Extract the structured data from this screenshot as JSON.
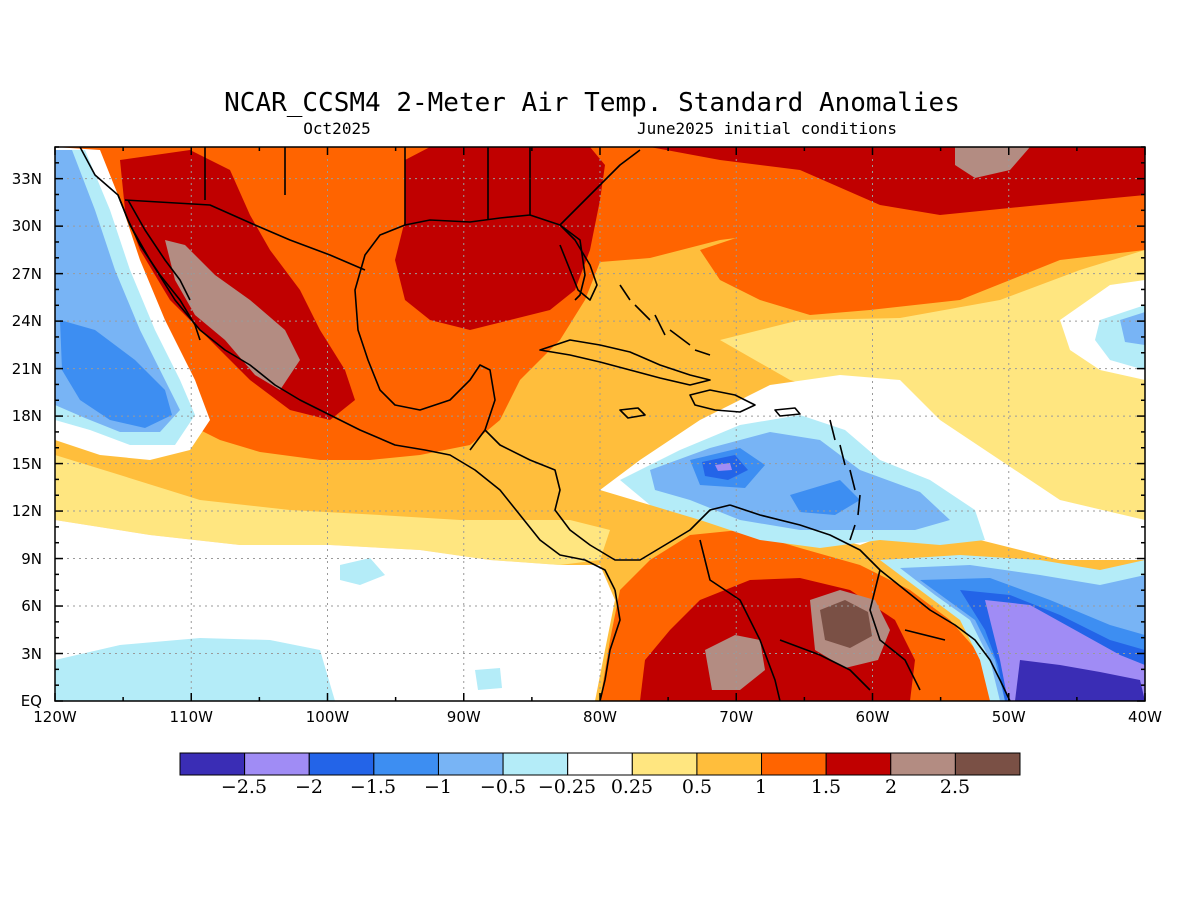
{
  "title": "NCAR_CCSM4 2-Meter Air Temp. Standard Anomalies",
  "valid_month": "Oct2025",
  "initial_conditions": "June2025 initial conditions",
  "axes": {
    "x_ticks": [
      "120W",
      "110W",
      "100W",
      "90W",
      "80W",
      "70W",
      "60W",
      "50W",
      "40W"
    ],
    "y_ticks": [
      "EQ",
      "3N",
      "6N",
      "9N",
      "12N",
      "15N",
      "18N",
      "21N",
      "24N",
      "27N",
      "30N",
      "33N"
    ],
    "lon_range": [
      -120,
      -40
    ],
    "lat_range": [
      0,
      35
    ],
    "grid": true
  },
  "colorbar": {
    "colors": [
      "#3a2db5",
      "#a08cf5",
      "#2364e8",
      "#3d8ef2",
      "#78b4f5",
      "#b4ecf8",
      "#ffffff",
      "#ffe680",
      "#ffbe3c",
      "#ff6400",
      "#c00000",
      "#b38c82",
      "#7a5045"
    ],
    "labels": [
      "−2.5",
      "−2",
      "−1.5",
      "−1",
      "−0.5",
      "−0.25",
      "0.25",
      "0.5",
      "1",
      "1.5",
      "2",
      "2.5"
    ]
  },
  "colors": {
    "land": "#f8b244",
    "coastline": "#000000",
    "grid": "#9a9a9a"
  }
}
